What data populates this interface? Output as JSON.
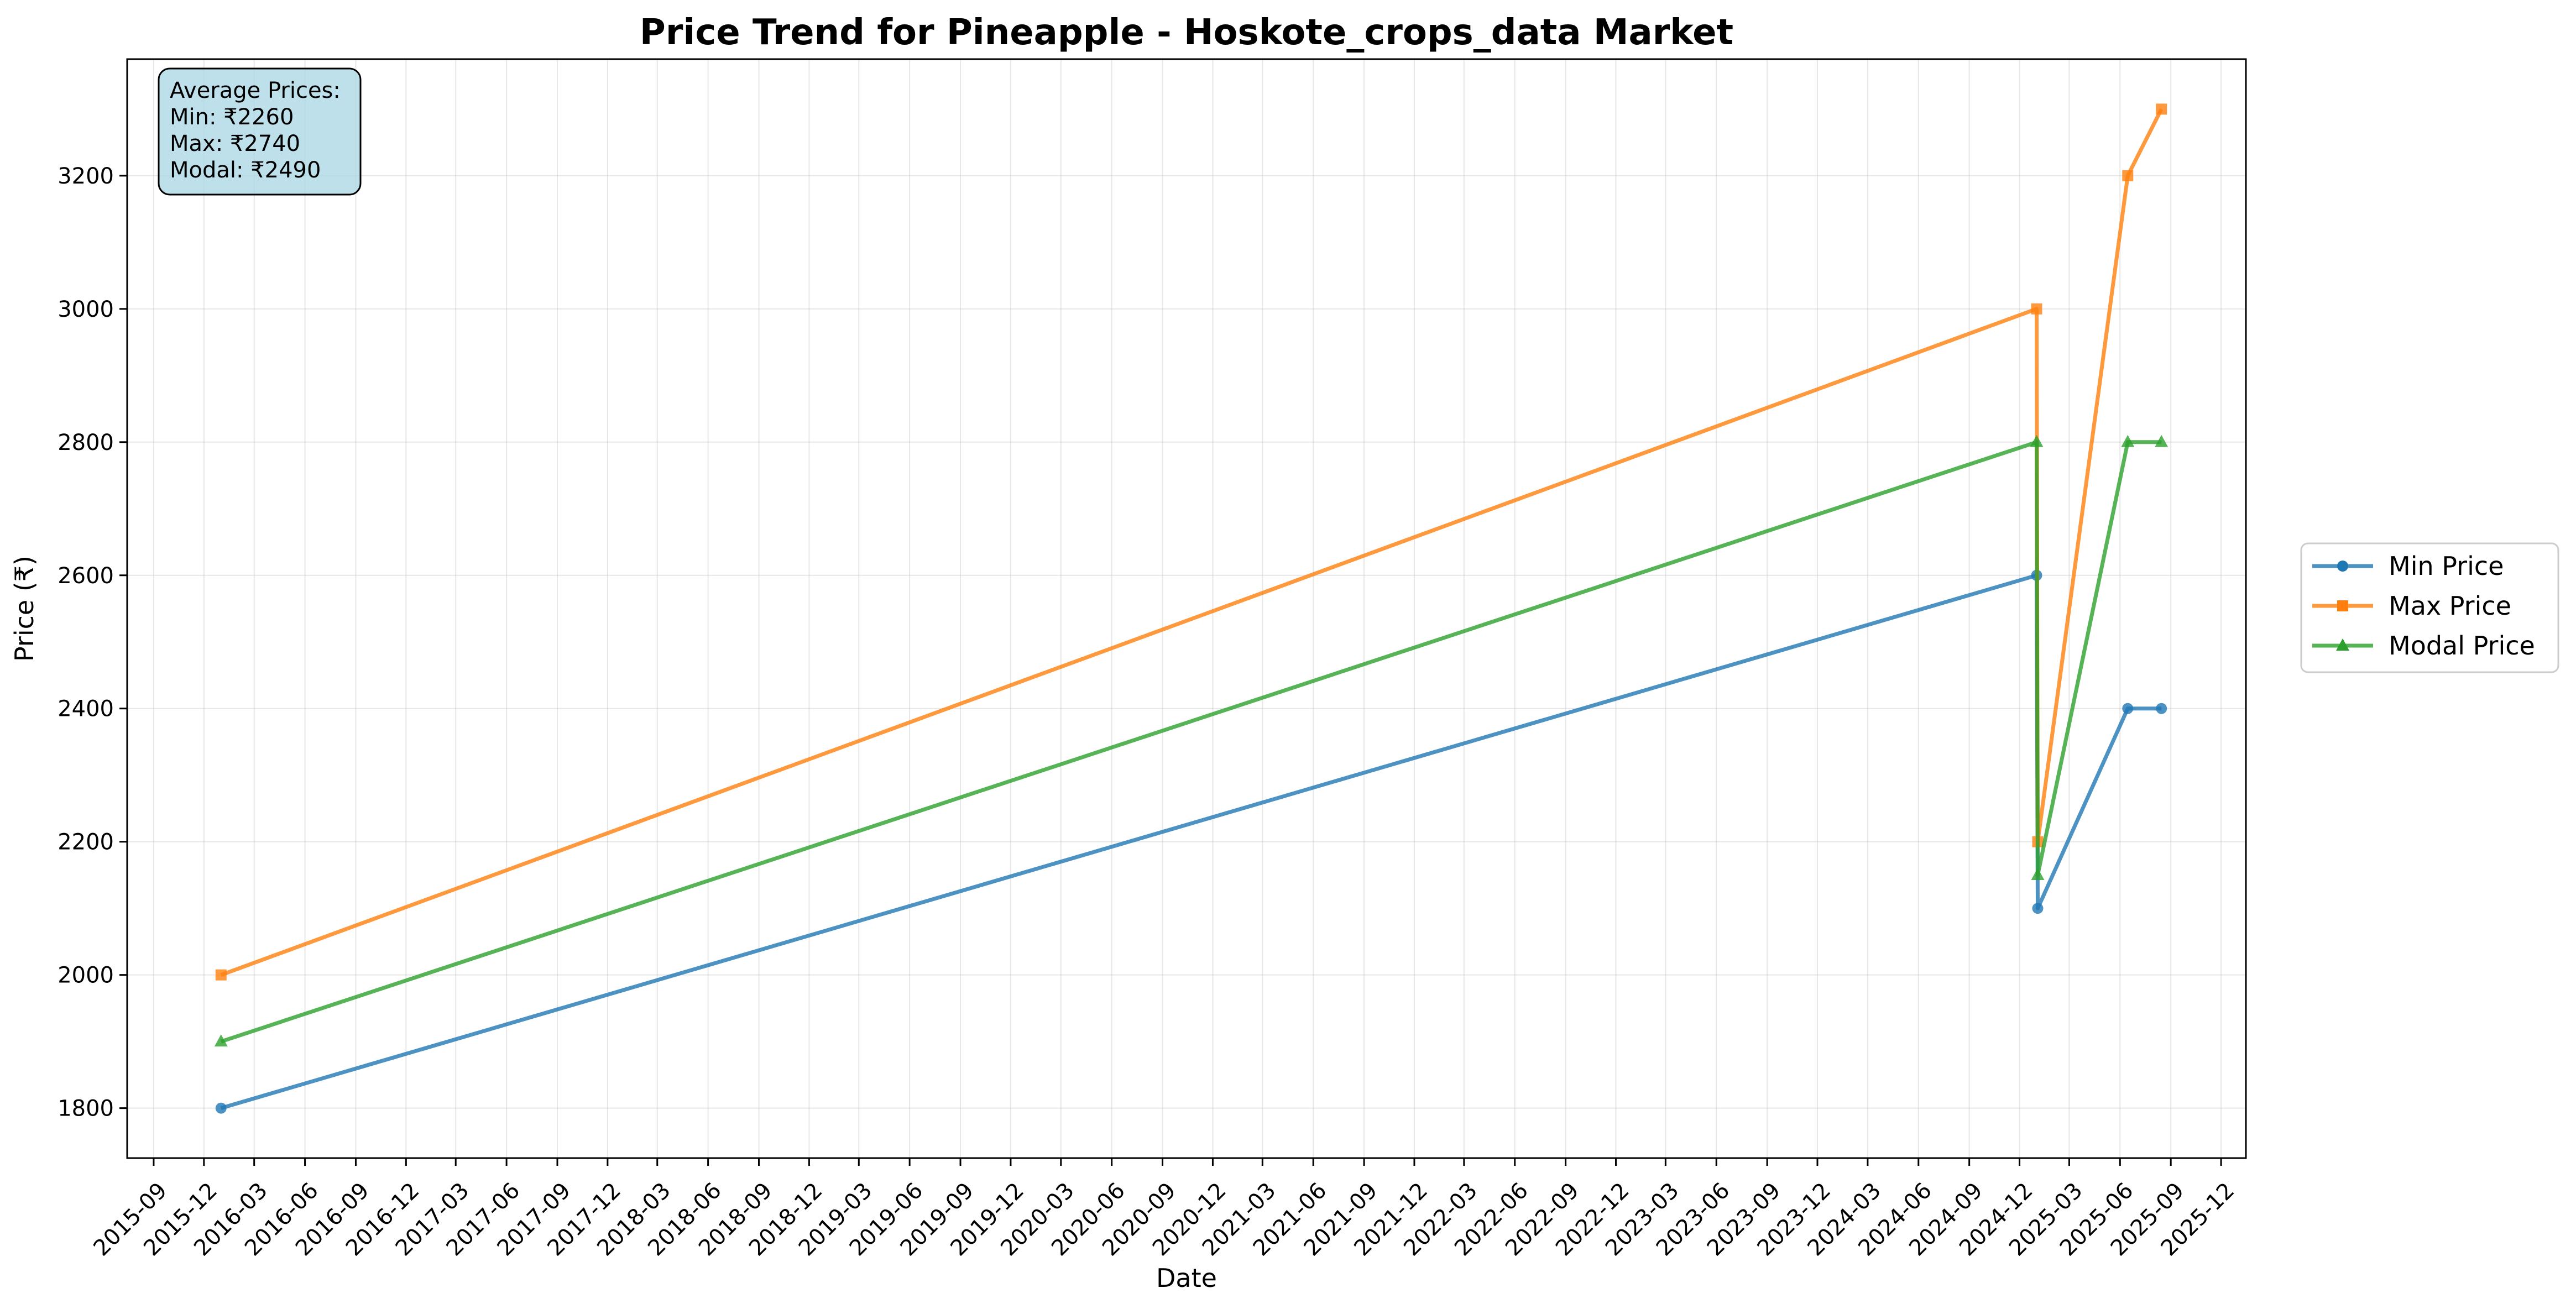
{
  "chart_data": {
    "type": "line",
    "title": "Price Trend for Pineapple - Hoskote_crops_data Market",
    "xlabel": "Date",
    "ylabel": "Price (₹)",
    "x": [
      "2016-01-01",
      "2025-01-01",
      "2025-01-03",
      "2025-06-15",
      "2025-08-15"
    ],
    "series": [
      {
        "name": "Min Price",
        "color": "#1f77b4",
        "marker": "circle",
        "values": [
          1800,
          2600,
          2100,
          2400,
          2400
        ]
      },
      {
        "name": "Max Price",
        "color": "#ff7f0e",
        "marker": "square",
        "values": [
          2000,
          3000,
          2200,
          3200,
          3300
        ]
      },
      {
        "name": "Modal Price",
        "color": "#2ca02c",
        "marker": "triangle",
        "values": [
          1900,
          2800,
          2150,
          2800,
          2800
        ]
      }
    ],
    "xlim": [
      "2015-07-15",
      "2026-01-15"
    ],
    "ylim": [
      1725,
      3375
    ],
    "x_ticks": [
      "2015-09",
      "2015-12",
      "2016-03",
      "2016-06",
      "2016-09",
      "2016-12",
      "2017-03",
      "2017-06",
      "2017-09",
      "2017-12",
      "2018-03",
      "2018-06",
      "2018-09",
      "2018-12",
      "2019-03",
      "2019-06",
      "2019-09",
      "2019-12",
      "2020-03",
      "2020-06",
      "2020-09",
      "2020-12",
      "2021-03",
      "2021-06",
      "2021-09",
      "2021-12",
      "2022-03",
      "2022-06",
      "2022-09",
      "2022-12",
      "2023-03",
      "2023-06",
      "2023-09",
      "2023-12",
      "2024-03",
      "2024-06",
      "2024-09",
      "2024-12",
      "2025-03",
      "2025-06",
      "2025-09",
      "2025-12"
    ],
    "y_ticks": [
      1800,
      2000,
      2200,
      2400,
      2600,
      2800,
      3000,
      3200
    ],
    "grid": true,
    "legend_position": "outside-right",
    "annotation": {
      "lines": [
        "Average Prices:",
        "Min: ₹2260",
        "Max: ₹2740",
        "Modal: ₹2490"
      ],
      "background": "#add8e6"
    }
  }
}
